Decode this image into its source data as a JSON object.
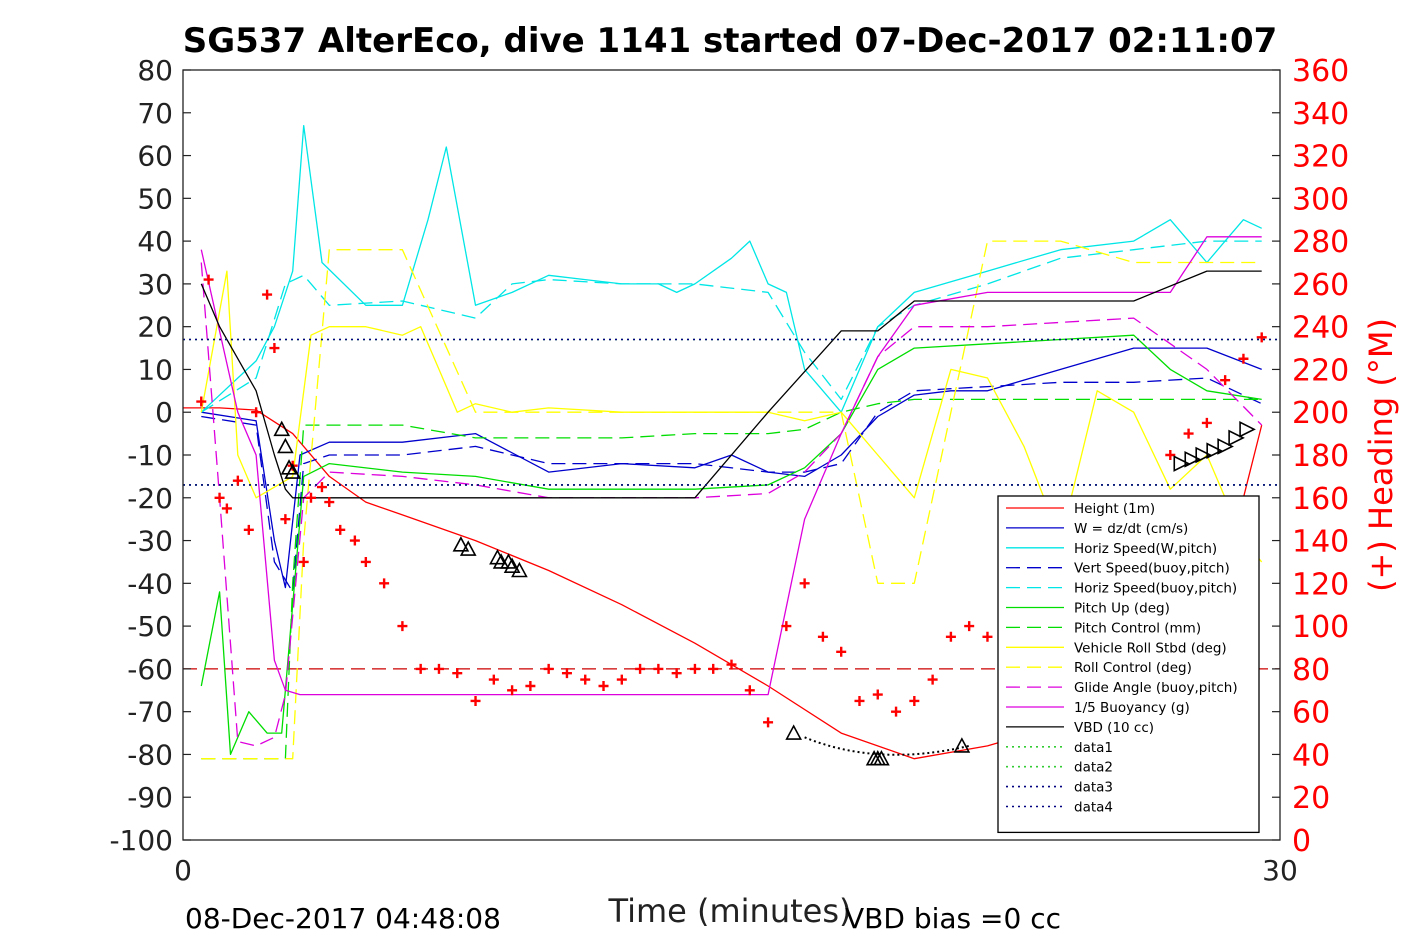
{
  "chart_data": {
    "type": "line",
    "title": "SG537 AlterEco, dive 1141 started 07-Dec-2017 02:11:07",
    "xlabel": "Time (minutes)",
    "ylabel_right": "(+) Heading (°M)",
    "footer_left": "08-Dec-2017 04:48:08",
    "footer_right": "VBD bias =0 cc",
    "xlim": [
      0,
      30
    ],
    "ylim": [
      -100,
      80
    ],
    "ylim_right": [
      0,
      360
    ],
    "x_ticks": [
      "0",
      "30"
    ],
    "y_ticks": [
      "80",
      "70",
      "60",
      "50",
      "40",
      "30",
      "20",
      "10",
      "0",
      "-10",
      "-20",
      "-30",
      "-40",
      "-50",
      "-60",
      "-70",
      "-80",
      "-90",
      "-100"
    ],
    "y_ticks_right": [
      "360",
      "340",
      "320",
      "300",
      "280",
      "260",
      "240",
      "220",
      "200",
      "180",
      "160",
      "140",
      "120",
      "100",
      "80",
      "60",
      "40",
      "20",
      "0"
    ],
    "grid": false,
    "legend_position": "lower-right",
    "colors": {
      "red": "#ff0000",
      "blue": "#0000cc",
      "cyan": "#00e6e6",
      "green": "#00dd00",
      "yellow": "#ffff00",
      "magenta": "#dd00dd",
      "black": "#000000",
      "navy": "#000080",
      "lightgreen": "#33cc33"
    },
    "series": [
      {
        "name": "Height (1m)",
        "color": "#ff0000",
        "style": "solid",
        "x": [
          0,
          1,
          2,
          3,
          4,
          5,
          6,
          8,
          10,
          12,
          14,
          16,
          18,
          20,
          22,
          24,
          25,
          26,
          27,
          28,
          29,
          29.5
        ],
        "y": [
          1,
          1,
          0.5,
          -5,
          -15,
          -21,
          -24,
          -30,
          -37,
          -45,
          -54,
          -64,
          -75,
          -81,
          -78,
          -73,
          -67,
          -59,
          -50,
          -40,
          -20,
          -3
        ]
      },
      {
        "name": "W = dz/dt (cm/s)",
        "color": "#0000cc",
        "style": "solid",
        "x": [
          0.5,
          2,
          2.5,
          2.8,
          3.2,
          4,
          6,
          8,
          10,
          12,
          14,
          15,
          16,
          17,
          18,
          19,
          20,
          21,
          22,
          24,
          26,
          28,
          29.5
        ],
        "y": [
          0,
          -2,
          -30,
          -41,
          -10,
          -7,
          -7,
          -5,
          -14,
          -12,
          -13,
          -10,
          -14,
          -15,
          -10,
          -1,
          4,
          5,
          5,
          10,
          15,
          15,
          10
        ]
      },
      {
        "name": "Horiz Speed(W,pitch)",
        "color": "#00e6e6",
        "style": "solid",
        "x": [
          0.5,
          2,
          2.5,
          3,
          3.3,
          3.8,
          5,
          6,
          6.7,
          7.2,
          8,
          9,
          10,
          11,
          12,
          12.5,
          13,
          13.5,
          14,
          15,
          15.5,
          16,
          16.5,
          17,
          18,
          19,
          20,
          22,
          24,
          26,
          27,
          28,
          28.5,
          29,
          29.5
        ],
        "y": [
          0,
          12,
          20,
          33,
          67,
          35,
          25,
          25,
          45,
          62,
          25,
          28,
          32,
          31,
          30,
          30,
          30,
          28,
          30,
          36,
          40,
          30,
          28,
          10,
          0,
          20,
          28,
          33,
          38,
          40,
          45,
          35,
          40,
          45,
          43
        ]
      },
      {
        "name": "Vert Speed(buoy,pitch)",
        "color": "#0000cc",
        "style": "dashed",
        "x": [
          0.5,
          2,
          2.5,
          3,
          3.3,
          4,
          6,
          8,
          10,
          12,
          14,
          16,
          17,
          18,
          19,
          20,
          22,
          24,
          26,
          28,
          29.5
        ],
        "y": [
          -1,
          -3,
          -35,
          -42,
          -12,
          -10,
          -10,
          -8,
          -12,
          -12,
          -12,
          -14,
          -14,
          -12,
          0,
          5,
          6,
          7,
          7,
          8,
          2
        ]
      },
      {
        "name": "Horiz Speed(buoy,pitch)",
        "color": "#00e6e6",
        "style": "dashed",
        "x": [
          0.5,
          2,
          2.8,
          3.3,
          4,
          6,
          8,
          9,
          10,
          12,
          14,
          16,
          17,
          18,
          19,
          20,
          22,
          24,
          26,
          28,
          29.5
        ],
        "y": [
          0,
          8,
          30,
          32,
          25,
          26,
          22,
          30,
          31,
          30,
          30,
          28,
          14,
          3,
          20,
          25,
          30,
          36,
          38,
          40,
          40
        ]
      },
      {
        "name": "Pitch Up (deg)",
        "color": "#00dd00",
        "style": "solid",
        "x": [
          0.5,
          1,
          1.3,
          1.8,
          2.3,
          2.7,
          3.3,
          4,
          6,
          8,
          10,
          12,
          14,
          16,
          17,
          18,
          19,
          20,
          22,
          24,
          26,
          27,
          28,
          29.5
        ],
        "y": [
          -64,
          -42,
          -80,
          -70,
          -75,
          -75,
          -15,
          -12,
          -14,
          -15,
          -18,
          -18,
          -18,
          -17,
          -13,
          -5,
          10,
          15,
          16,
          17,
          18,
          10,
          5,
          3
        ]
      },
      {
        "name": "Pitch Control (mm)",
        "color": "#00dd00",
        "style": "dashed",
        "x": [
          0.5,
          2,
          2.5,
          2.8,
          3,
          3.3,
          4,
          6,
          8,
          10,
          12,
          14,
          16,
          17,
          18,
          19,
          20,
          22,
          24,
          26,
          28,
          29.5
        ],
        "y": [
          -81,
          -81,
          -81,
          -81,
          -40,
          -3,
          -3,
          -3,
          -6,
          -6,
          -6,
          -5,
          -5,
          -4,
          0,
          2,
          3,
          3,
          3,
          3,
          3,
          3
        ]
      },
      {
        "name": "Vehicle Roll Stbd (deg)",
        "color": "#ffff00",
        "style": "solid",
        "x": [
          0.5,
          1.2,
          1.5,
          2,
          3,
          3.5,
          4,
          5,
          6,
          6.5,
          7,
          7.5,
          8,
          9,
          10,
          12,
          14,
          16,
          17,
          18,
          18.5,
          19,
          20,
          21,
          22,
          23,
          24,
          25,
          26,
          27,
          28,
          29,
          29.5
        ],
        "y": [
          0,
          33,
          -10,
          -20,
          -15,
          18,
          20,
          20,
          18,
          20,
          10,
          0,
          2,
          0,
          1,
          0,
          0,
          0,
          -2,
          0,
          -5,
          -10,
          -20,
          10,
          8,
          -8,
          -30,
          5,
          0,
          -18,
          -10,
          -30,
          -35
        ]
      },
      {
        "name": "Roll Control (deg)",
        "color": "#ffff00",
        "style": "dashed",
        "x": [
          0.5,
          2,
          2.5,
          3,
          3.3,
          4,
          6,
          8,
          10,
          12,
          14,
          16,
          17,
          18,
          19,
          20,
          22,
          24,
          26,
          28,
          29.5
        ],
        "y": [
          -81,
          -81,
          -81,
          -81,
          -30,
          38,
          38,
          0,
          0,
          0,
          0,
          0,
          0,
          0,
          -40,
          -40,
          40,
          40,
          35,
          35,
          35
        ]
      },
      {
        "name": "Glide Angle (buoy,pitch)",
        "color": "#dd00dd",
        "style": "dashed",
        "x": [
          0.5,
          1,
          1.5,
          2,
          2.5,
          2.8,
          3.3,
          4,
          6,
          8,
          10,
          12,
          14,
          16,
          17,
          18,
          19,
          20,
          22,
          24,
          26,
          28,
          29.5
        ],
        "y": [
          35,
          -20,
          -77,
          -78,
          -76,
          -66,
          -20,
          -14,
          -15,
          -17,
          -20,
          -20,
          -20,
          -19,
          -14,
          -5,
          13,
          20,
          20,
          21,
          22,
          10,
          -3
        ]
      },
      {
        "name": "1/5 Buoyancy (g)",
        "color": "#dd00dd",
        "style": "solid",
        "x": [
          0.5,
          1.5,
          2,
          2.5,
          2.8,
          3.2,
          4,
          6,
          10,
          14,
          16,
          17,
          18,
          19,
          20,
          22,
          24,
          26,
          27,
          28,
          29.5
        ],
        "y": [
          38,
          0,
          -10,
          -58,
          -65,
          -66,
          -66,
          -66,
          -66,
          -66,
          -66,
          -25,
          -5,
          13,
          25,
          28,
          28,
          28,
          28,
          41,
          41
        ]
      },
      {
        "name": "VBD (10 cc)",
        "color": "#000000",
        "style": "solid",
        "x": [
          0.5,
          1,
          2,
          2.5,
          2.8,
          3,
          4,
          6,
          8,
          10,
          12,
          14,
          16,
          18,
          19,
          20,
          21,
          22,
          24,
          26,
          28,
          29.5
        ],
        "y": [
          30,
          20,
          5,
          -10,
          -18,
          -20,
          -20,
          -20,
          -20,
          -20,
          -20,
          -20,
          0,
          19,
          19,
          26,
          26,
          26,
          26,
          26,
          33,
          33
        ]
      },
      {
        "name": "data1",
        "color": "#33cc33",
        "style": "dotted",
        "x": [
          0,
          30
        ],
        "y": [
          17,
          17
        ]
      },
      {
        "name": "data2",
        "color": "#33cc33",
        "style": "dotted",
        "x": [
          0,
          30
        ],
        "y": [
          -17,
          -17
        ]
      },
      {
        "name": "data3",
        "color": "#000080",
        "style": "dotted",
        "x": [
          0,
          30
        ],
        "y": [
          17,
          17
        ]
      },
      {
        "name": "data4",
        "color": "#000080",
        "style": "dotted",
        "x": [
          0,
          30
        ],
        "y": [
          -17,
          -17
        ]
      }
    ],
    "reference_line": {
      "y": -60,
      "color": "#cc0000",
      "style": "dashed"
    },
    "heading_markers": {
      "axis": "right",
      "x": [
        0.5,
        0.7,
        1,
        1.2,
        1.5,
        1.8,
        2,
        2.3,
        2.5,
        2.8,
        3,
        3.3,
        3.5,
        3.8,
        4,
        4.3,
        4.7,
        5,
        5.5,
        6,
        6.5,
        7,
        7.5,
        8,
        8.5,
        9,
        9.5,
        10,
        10.5,
        11,
        11.5,
        12,
        12.5,
        13,
        13.5,
        14,
        14.5,
        15,
        15.5,
        16,
        16.5,
        17,
        17.5,
        18,
        18.5,
        19,
        19.5,
        20,
        20.5,
        21,
        21.5,
        22,
        22.5,
        23,
        23.5,
        24,
        24.5,
        25,
        25.5,
        26,
        26.5,
        27,
        27.5,
        28,
        28.5,
        29,
        29.5
      ],
      "y": [
        205,
        262,
        160,
        155,
        168,
        145,
        200,
        255,
        230,
        150,
        175,
        130,
        160,
        165,
        158,
        145,
        140,
        130,
        120,
        100,
        80,
        80,
        78,
        65,
        75,
        70,
        72,
        80,
        78,
        75,
        72,
        75,
        80,
        80,
        78,
        80,
        80,
        82,
        70,
        55,
        100,
        120,
        95,
        88,
        65,
        68,
        60,
        65,
        75,
        95,
        100,
        95,
        80,
        75,
        80,
        75,
        70,
        65,
        85,
        100,
        150,
        180,
        190,
        195,
        215,
        225,
        235
      ]
    },
    "dive_markers": {
      "color": "#000000",
      "descent_x": [
        2.7,
        2.8,
        2.9,
        3.0,
        7.6,
        7.8,
        8.6,
        8.7,
        8.9,
        9.0,
        9.2,
        16.7,
        18.9,
        19.0,
        19.1,
        21.3,
        22.6,
        22.7,
        23.6
      ],
      "descent_y": [
        -4,
        -8,
        -13,
        -14,
        -31,
        -32,
        -34,
        -35,
        -35,
        -36,
        -37,
        -75,
        -81,
        -81,
        -81,
        -78,
        -75,
        -74,
        -69
      ],
      "ascent_x": [
        24.3,
        24.9,
        25.6,
        26.0,
        26.4,
        26.8,
        27.0,
        27.3,
        27.6,
        27.9,
        28.2,
        28.5,
        28.8,
        29.1
      ],
      "ascent_y": [
        -65,
        -64,
        -59,
        -56,
        -51,
        -47,
        -42,
        -12,
        -11,
        -10,
        -9,
        -8,
        -6,
        -4
      ]
    }
  }
}
